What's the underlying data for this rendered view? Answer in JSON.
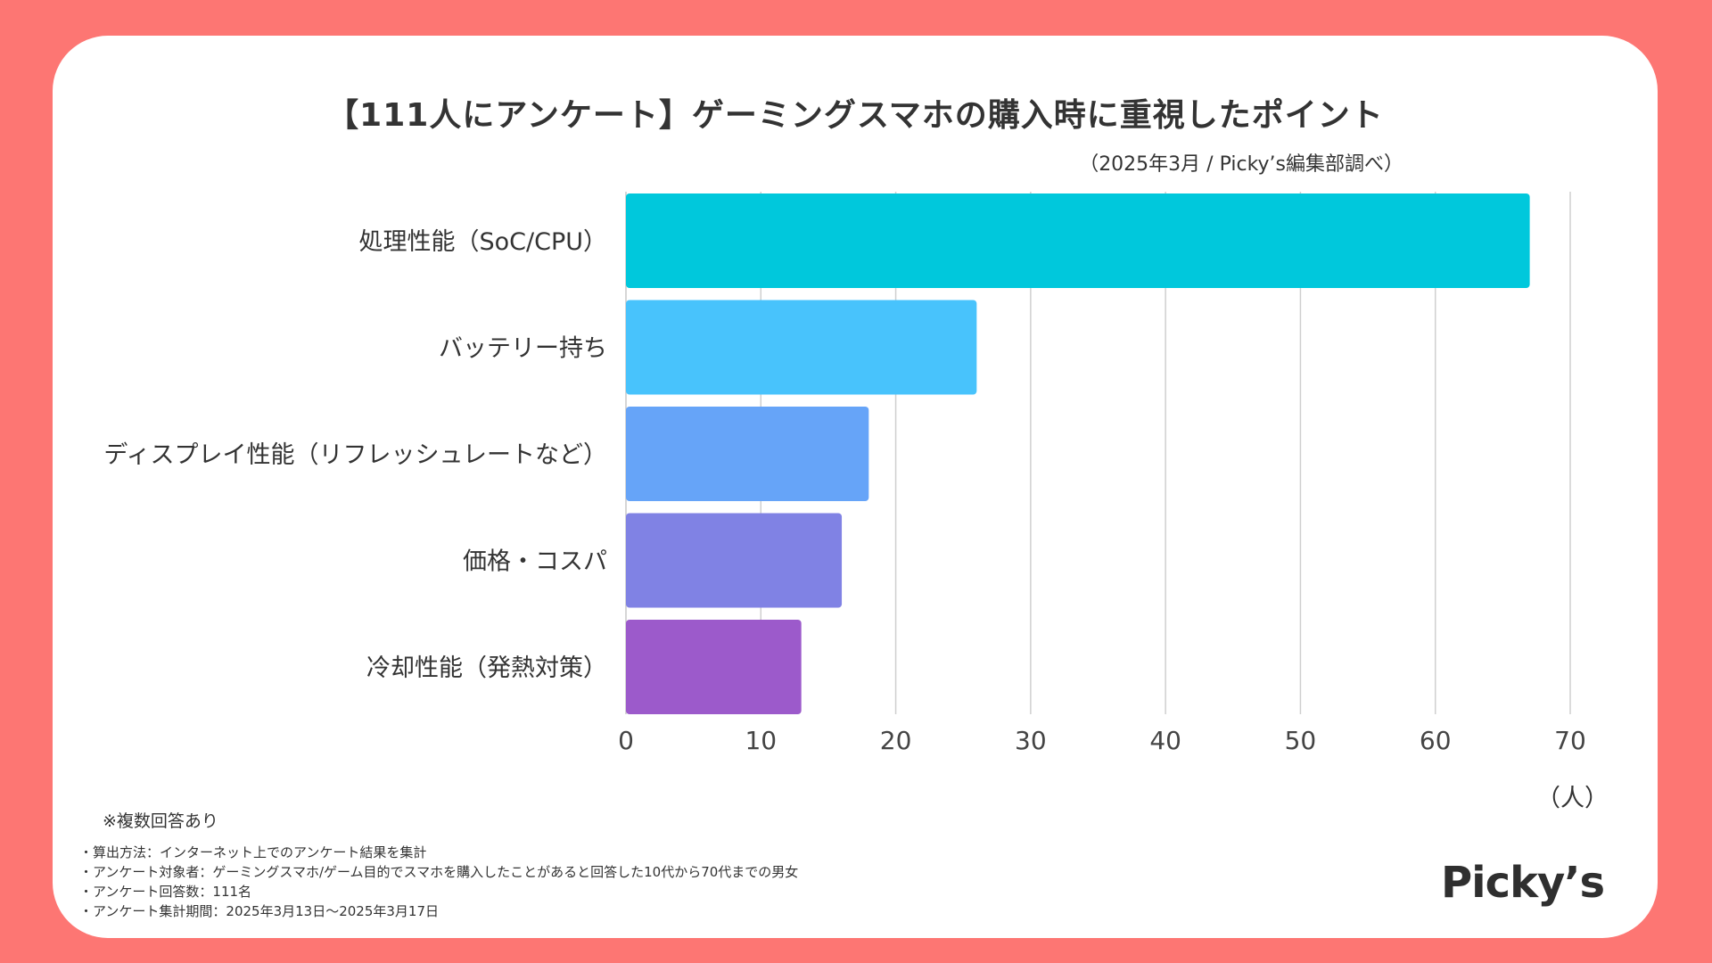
{
  "title": "【111人にアンケート】ゲーミングスマホの購入時に重視したポイント",
  "subtitle": "（2025年3月 / Picky’s編集部調べ）",
  "chart_data": {
    "type": "bar",
    "orientation": "horizontal",
    "title": "【111人にアンケート】ゲーミングスマホの購入時に重視したポイント",
    "categories": [
      "処理性能（SoC/CPU）",
      "バッテリー持ち",
      "ディスプレイ性能（リフレッシュレートなど）",
      "価格・コスパ",
      "冷却性能（発熱対策）"
    ],
    "values": [
      67,
      26,
      18,
      16,
      13
    ],
    "colors": [
      "#00c8dc",
      "#48c3fc",
      "#66a4f8",
      "#8082e4",
      "#9c5acb"
    ],
    "xlim": [
      0,
      70
    ],
    "xticks": [
      0,
      10,
      20,
      30,
      40,
      50,
      60,
      70
    ],
    "xlabel": "（人）",
    "ylabel": "",
    "grid": true
  },
  "notes": {
    "multiple_answers": "※複数回答あり",
    "method_lines": [
      "・算出方法：インターネット上でのアンケート結果を集計",
      "・アンケート対象者：ゲーミングスマホ/ゲーム目的でスマホを購入したことがあると回答した10代から70代までの男女",
      "・アンケート回答数：111名",
      "・アンケート集計期間：2025年3月13日〜2025年3月17日"
    ]
  },
  "logo_text": "Picky’s"
}
